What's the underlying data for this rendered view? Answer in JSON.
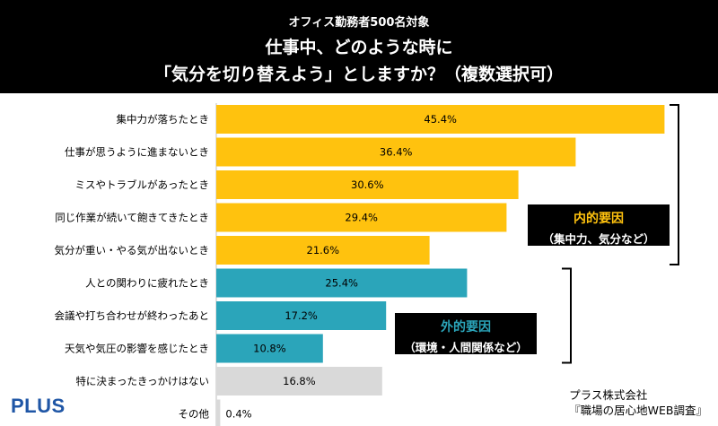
{
  "header": {
    "subtitle": "オフィス勤務者500名対象",
    "title_line1": "仕事中、どのような時に",
    "title_line2": "「気分を切り替えよう」としますか？（複数選択可）"
  },
  "chart_data": {
    "type": "bar",
    "orientation": "horizontal",
    "unit": "%",
    "xlim": [
      0,
      50
    ],
    "categories": [
      "集中力が落ちたとき",
      "仕事が思うように進まないとき",
      "ミスやトラブルがあったとき",
      "同じ作業が続いて飽きてきたとき",
      "気分が重い・やる気が出ないとき",
      "人との関わりに疲れたとき",
      "会議や打ち合わせが終わったあと",
      "天気や気圧の影響を感じたとき",
      "特に決まったきっかけはない",
      "その他"
    ],
    "values": [
      45.4,
      36.4,
      30.6,
      29.4,
      21.6,
      25.4,
      17.2,
      10.8,
      16.8,
      0.4
    ],
    "value_labels": [
      "45.4%",
      "36.4%",
      "30.6%",
      "29.4%",
      "21.6%",
      "25.4%",
      "17.2%",
      "10.8%",
      "16.8%",
      "0.4%"
    ],
    "groups": [
      {
        "heading": "内的要因",
        "detail": "（集中力、気分など）",
        "color": "#FFC20E",
        "first": 0,
        "last": 4
      },
      {
        "heading": "外的要因",
        "detail": "（環境・人間関係など）",
        "color": "#2BA5BA",
        "first": 5,
        "last": 7
      },
      {
        "color": "#D9D9D9",
        "first": 8,
        "last": 9
      }
    ]
  },
  "logo": "PLUS",
  "credit": {
    "line1": "プラス株式会社",
    "line2": "『職場の居心地WEB調査』"
  }
}
